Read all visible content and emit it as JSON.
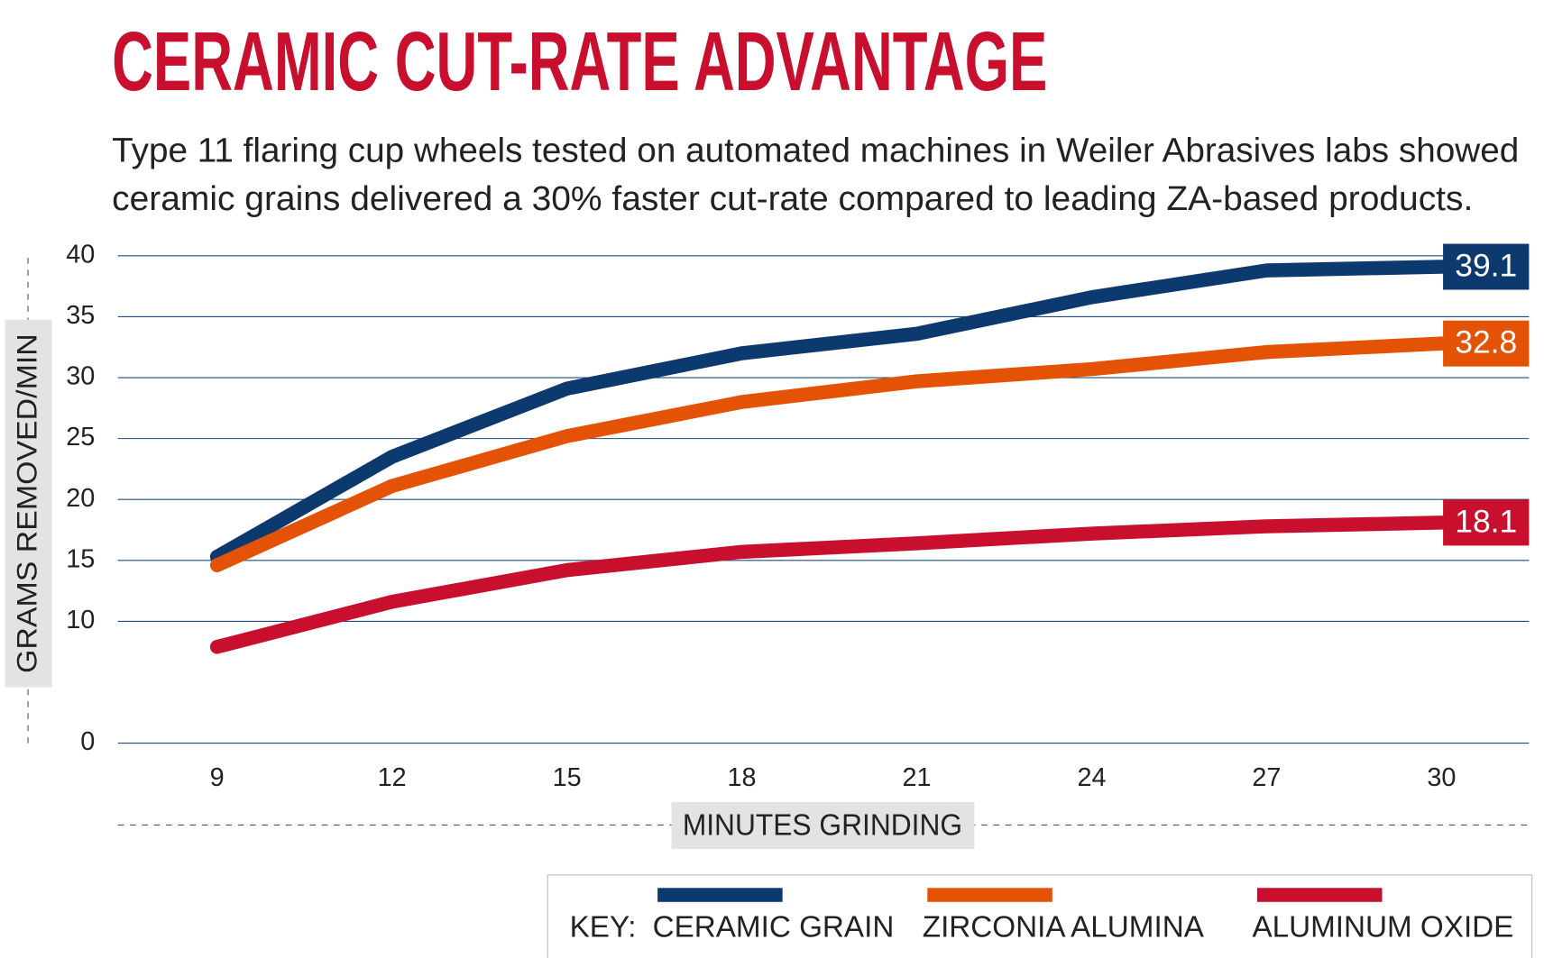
{
  "chart_data": {
    "type": "line",
    "title": "CERAMIC CUT-RATE ADVANTAGE",
    "subtitle": [
      "Type 11 flaring cup wheels tested on automated machines in Weiler Abrasives labs showed",
      "ceramic grains delivered a 30% faster cut-rate compared to leading ZA-based products."
    ],
    "x_label": "MINUTES GRINDING",
    "y_label": "GRAMS REMOVED/MIN",
    "legend_title": "KEY:",
    "x": [
      9,
      12,
      15,
      18,
      21,
      24,
      27,
      30
    ],
    "xlim": [
      7.3,
      31.5
    ],
    "xticks": [
      9,
      12,
      15,
      18,
      21,
      24,
      27,
      30
    ],
    "ylim": [
      0,
      40
    ],
    "yticks": [
      0,
      10,
      15,
      20,
      25,
      30,
      35,
      40
    ],
    "grid": true,
    "series": [
      {
        "name": "CERAMIC GRAIN",
        "color": "#0d3a6e",
        "values": [
          15.3,
          23.5,
          29.1,
          32.0,
          33.6,
          36.6,
          38.8,
          39.1
        ]
      },
      {
        "name": "ZIRCONIA ALUMINA",
        "color": "#e35205",
        "values": [
          14.6,
          21.1,
          25.2,
          28.0,
          29.7,
          30.7,
          32.1,
          32.8
        ]
      },
      {
        "name": "ALUMINUM OXIDE",
        "color": "#c8102e",
        "values": [
          7.9,
          11.6,
          14.2,
          15.7,
          16.4,
          17.2,
          17.8,
          18.1
        ]
      }
    ]
  }
}
